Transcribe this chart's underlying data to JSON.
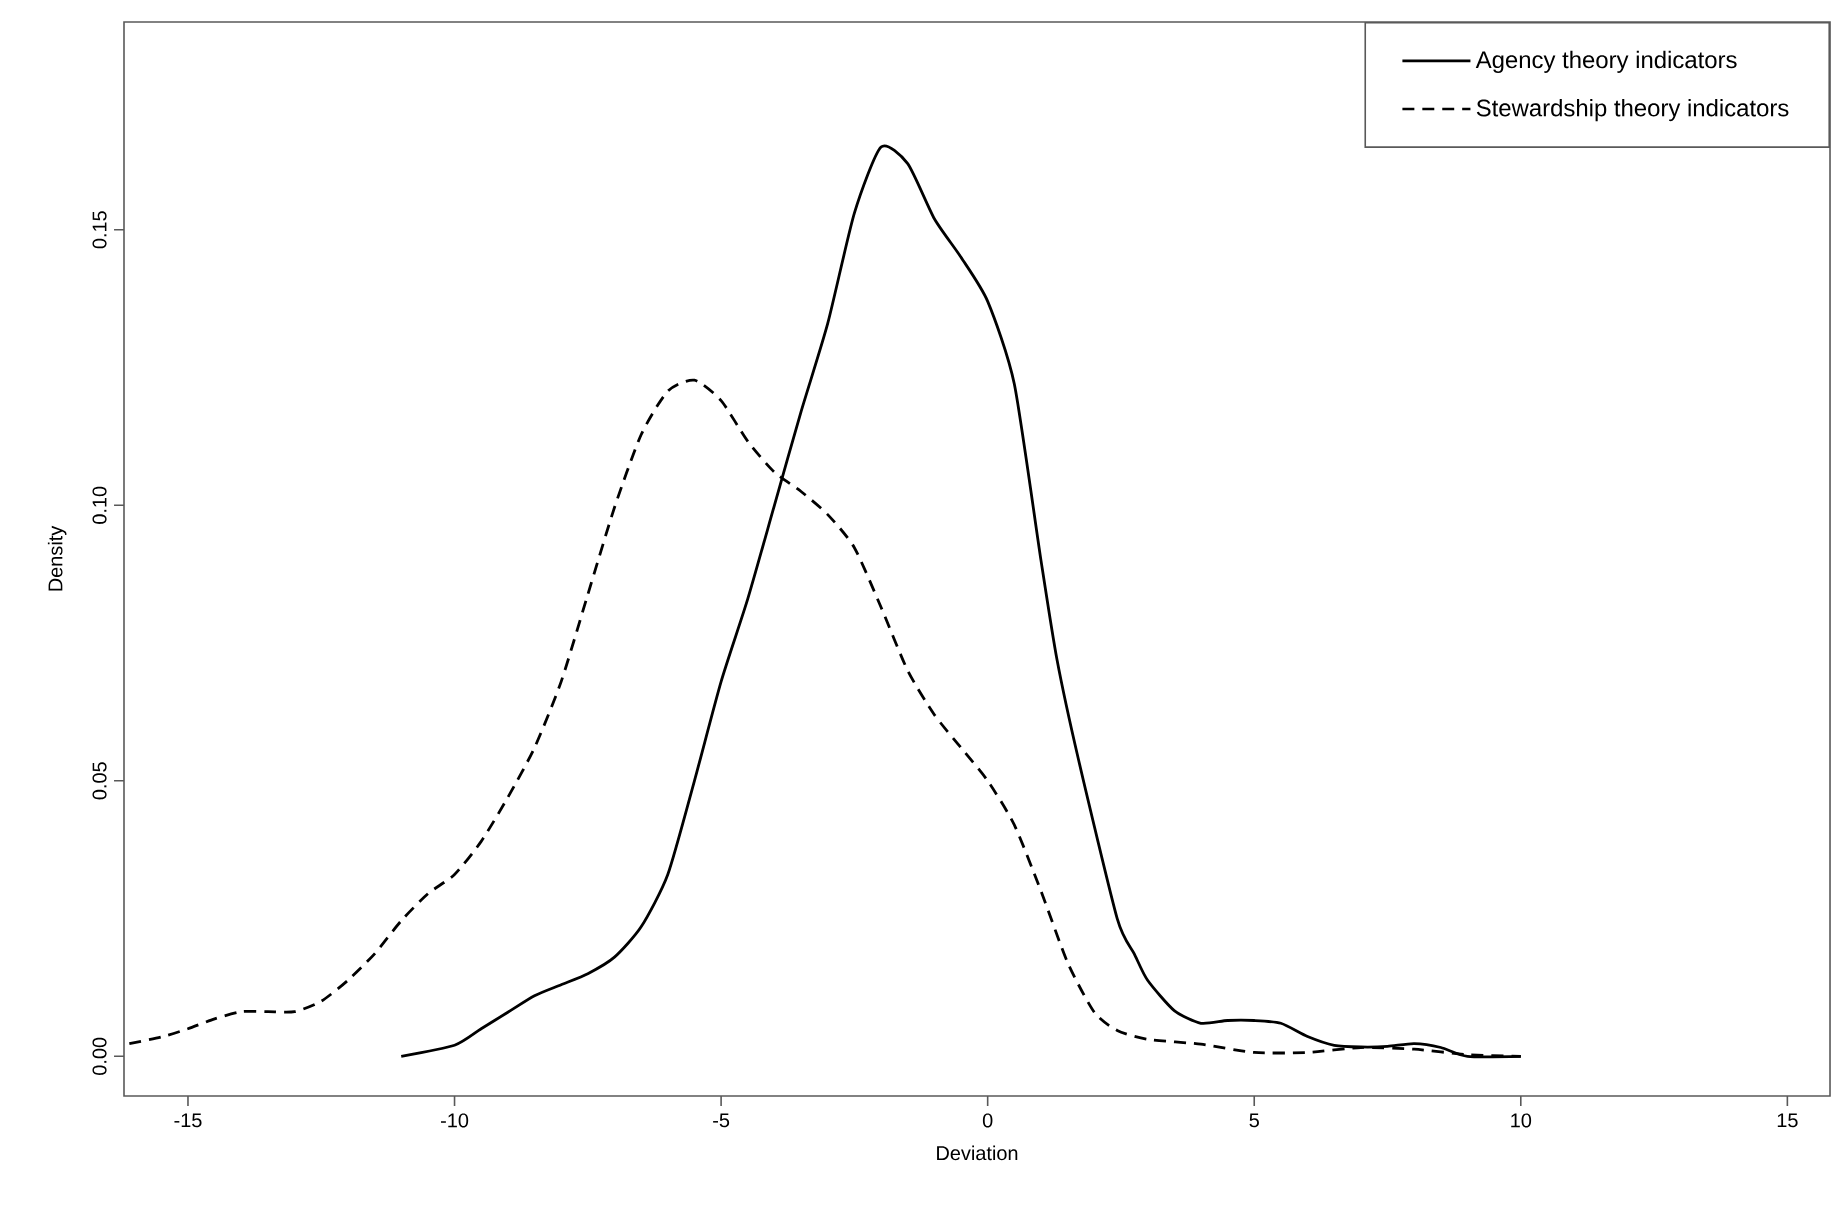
{
  "chart_data": {
    "type": "line",
    "xlabel": "Deviation",
    "ylabel": "Density",
    "xlim": [
      -16.2,
      15.8
    ],
    "ylim": [
      -0.0072,
      0.1877
    ],
    "xticks": [
      -15,
      -10,
      -5,
      0,
      5,
      10,
      15
    ],
    "yticks": [
      {
        "value": 0,
        "label": "0.00"
      },
      {
        "value": 0.05,
        "label": "0.05"
      },
      {
        "value": 0.1,
        "label": "0.10"
      },
      {
        "value": 0.15,
        "label": "0.15"
      }
    ],
    "legend": "top right",
    "grid": false,
    "marker": "none",
    "series": [
      {
        "name": "Agency theory indicators",
        "color": "#000000",
        "line_style": "solid",
        "x": [
          -11,
          -10,
          -9.5,
          -9,
          -8.5,
          -8,
          -7.5,
          -7,
          -6.5,
          -6,
          -5.5,
          -5,
          -4.5,
          -4,
          -3.5,
          -3,
          -2.5,
          -2,
          -1.5,
          -1,
          -0.5,
          0,
          0.5,
          1,
          1.3,
          1.7,
          2.43,
          2.75,
          3,
          3.5,
          4,
          4.5,
          5,
          5.5,
          6,
          6.5,
          7,
          7.5,
          8,
          8.5,
          9,
          10
        ],
        "values": [
          0.0,
          0.002,
          0.005,
          0.008,
          0.011,
          0.013,
          0.015,
          0.018,
          0.0235,
          0.033,
          0.05,
          0.068,
          0.083,
          0.1,
          0.117,
          0.133,
          0.153,
          0.165,
          0.162,
          0.152,
          0.145,
          0.137,
          0.122,
          0.09,
          0.072,
          0.054,
          0.025,
          0.0186,
          0.0138,
          0.0083,
          0.006,
          0.0065,
          0.0065,
          0.006,
          0.0036,
          0.002,
          0.0017,
          0.0018,
          0.0023,
          0.0016,
          0.0,
          0.0
        ]
      },
      {
        "name": "Stewardship theory indicators",
        "color": "#000000",
        "line_style": "dashed",
        "x": [
          -16.1,
          -15.5,
          -15,
          -14.5,
          -14,
          -13.5,
          -13,
          -12.5,
          -12,
          -11.5,
          -11,
          -10.5,
          -10,
          -9.5,
          -9,
          -8.5,
          -8,
          -7.5,
          -7,
          -6.5,
          -6,
          -5.5,
          -5,
          -4.5,
          -4,
          -3.5,
          -3,
          -2.5,
          -2,
          -1.5,
          -1,
          -0.5,
          0,
          0.5,
          1,
          1.5,
          2,
          2.43,
          3,
          4,
          5,
          6,
          7,
          8,
          9,
          10
        ],
        "values": [
          0.0023,
          0.0035,
          0.005,
          0.0068,
          0.0081,
          0.0081,
          0.0081,
          0.01,
          0.0138,
          0.0186,
          0.0246,
          0.0295,
          0.033,
          0.039,
          0.047,
          0.056,
          0.068,
          0.0838,
          0.0996,
          0.1128,
          0.1207,
          0.1227,
          0.119,
          0.1116,
          0.106,
          0.1025,
          0.0983,
          0.0923,
          0.0815,
          0.07,
          0.062,
          0.056,
          0.05,
          0.042,
          0.03,
          0.017,
          0.008,
          0.0047,
          0.0031,
          0.0022,
          0.0007,
          0.0007,
          0.0016,
          0.0013,
          0.0003,
          0.0
        ]
      }
    ]
  }
}
